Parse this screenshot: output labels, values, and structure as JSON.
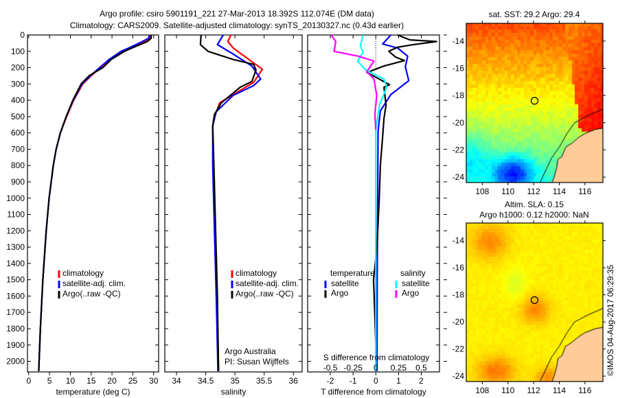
{
  "title": {
    "line1": "Argo profile: csiro 5901191_221 27-Mar-2013 18.392S 112.074E (DM data)",
    "line2": "Climatology: CARS2009. Satellite-adjusted climatology: synTS_20130327.nc (0.43d earlier)"
  },
  "timestamp": "©IMOS 04-Aug-2017 06:29:35",
  "colors": {
    "climatology": "#ff0000",
    "satellite": "#0000ff",
    "argo": "#000000",
    "sat_salinity": "#00ffff",
    "argo_salinity": "#ff00ff",
    "land": "#ffcc99"
  },
  "chart_data": [
    {
      "id": "temperature",
      "type": "line",
      "xlabel": "temperature (deg C)",
      "ylabel": "depth",
      "xlim": [
        -0.3,
        31.2
      ],
      "ylim": [
        2065,
        0
      ],
      "xticks": [
        0,
        5,
        10,
        15,
        20,
        25,
        30
      ],
      "yticks": [
        0,
        100,
        200,
        300,
        400,
        500,
        600,
        700,
        800,
        900,
        1000,
        1100,
        1200,
        1300,
        1400,
        1500,
        1600,
        1700,
        1800,
        1900,
        2000
      ],
      "legend": [
        "climatology",
        "satellite-adj. clim.",
        "Argo(..raw -QC)"
      ],
      "legend_placement": "lower-center",
      "series": [
        {
          "name": "climatology",
          "color": "#ff0000",
          "depth": [
            0,
            20,
            50,
            80,
            100,
            150,
            200,
            250,
            300,
            400,
            500,
            600,
            700,
            800,
            1000,
            1200,
            1500,
            1800,
            2060
          ],
          "values": [
            29.3,
            29.0,
            27.0,
            24.5,
            22.5,
            19.5,
            17.2,
            15.0,
            13.0,
            10.8,
            9.1,
            7.6,
            6.6,
            5.9,
            4.9,
            4.2,
            3.4,
            2.8,
            2.4
          ]
        },
        {
          "name": "satellite-adj. clim.",
          "color": "#0000ff",
          "depth": [
            0,
            20,
            50,
            80,
            100,
            150,
            200,
            250,
            300,
            400,
            500,
            600,
            700,
            800,
            1000,
            1200,
            1500,
            1800,
            2060
          ],
          "values": [
            29.0,
            28.8,
            26.5,
            24.0,
            22.2,
            19.3,
            17.0,
            14.8,
            12.8,
            10.7,
            9.0,
            7.6,
            6.6,
            5.9,
            4.9,
            4.2,
            3.4,
            2.8,
            2.4
          ]
        },
        {
          "name": "Argo(..raw -QC)",
          "color": "#000000",
          "depth": [
            0,
            20,
            40,
            80,
            100,
            150,
            200,
            250,
            300,
            400,
            500,
            600,
            700,
            800,
            1000,
            1200,
            1500,
            1800,
            2060
          ],
          "values": [
            29.4,
            29.4,
            28.5,
            24.8,
            23.0,
            19.8,
            17.8,
            14.5,
            12.6,
            10.6,
            9.0,
            7.6,
            6.6,
            5.9,
            4.9,
            4.2,
            3.4,
            2.8,
            2.4
          ]
        }
      ]
    },
    {
      "id": "salinity",
      "type": "line",
      "xlabel": "salinity",
      "xlim": [
        33.8,
        36.15
      ],
      "ylim": [
        2065,
        0
      ],
      "xticks": [
        34,
        34.5,
        35,
        35.5,
        36
      ],
      "legend": [
        "climatology",
        "satellite-adj. clim.",
        "Argo(..raw -QC)"
      ],
      "legend_placement": "lower-center",
      "annotation": [
        "Argo Australia",
        "PI: Susan Wijffels"
      ],
      "series": [
        {
          "name": "climatology",
          "color": "#ff0000",
          "depth": [
            0,
            40,
            80,
            140,
            210,
            290,
            340,
            415,
            510,
            560,
            800,
            1200,
            1600,
            2060
          ],
          "values": [
            34.93,
            34.88,
            34.97,
            35.2,
            35.47,
            35.32,
            35.09,
            34.74,
            34.64,
            34.62,
            34.63,
            34.66,
            34.69,
            34.72
          ]
        },
        {
          "name": "satellite-adj. clim.",
          "color": "#0000ff",
          "depth": [
            0,
            59,
            110,
            190,
            270,
            310,
            370,
            470,
            557,
            800,
            1200,
            1600,
            2060
          ],
          "values": [
            34.8,
            34.7,
            34.94,
            35.29,
            35.44,
            35.32,
            34.97,
            34.68,
            34.62,
            34.62,
            34.65,
            34.68,
            34.71
          ]
        },
        {
          "name": "Argo(..raw -QC)",
          "color": "#000000",
          "depth": [
            0,
            59,
            100,
            150,
            180,
            215,
            285,
            320,
            415,
            487,
            557,
            795,
            1200,
            1600,
            2060
          ],
          "values": [
            34.42,
            34.41,
            34.54,
            34.97,
            35.32,
            35.36,
            35.29,
            35.09,
            34.77,
            34.65,
            34.62,
            34.64,
            34.67,
            34.7,
            34.72
          ]
        }
      ]
    },
    {
      "id": "difference",
      "type": "line",
      "xlabel": "T difference from climatology",
      "x2label": "S difference from climatology",
      "xlim": [
        -3.0,
        2.8
      ],
      "x2lim": [
        -0.75,
        0.7
      ],
      "ylim": [
        2065,
        0
      ],
      "xticks": [
        -2,
        -1,
        0,
        1,
        2
      ],
      "x2ticks": [
        "-0.5",
        "-0.25",
        "0",
        "0.25",
        "0.5"
      ],
      "x2tick_values": [
        -0.5,
        -0.25,
        0,
        0.25,
        0.5
      ],
      "legend_titles": [
        "temperature",
        "salinity"
      ],
      "legend": [
        "satellite",
        "Argo",
        "satellite",
        "Argo"
      ],
      "series": [
        {
          "name": "T satellite",
          "axis": "T",
          "color": "#0000ff",
          "depth": [
            0,
            55,
            80,
            130,
            195,
            280,
            365,
            465,
            590,
            1000,
            1500,
            2060
          ],
          "values": [
            0.66,
            0.3,
            0.96,
            1.4,
            1.3,
            1.45,
            0.66,
            0.2,
            0.1,
            0.08,
            0.06,
            0.05
          ]
        },
        {
          "name": "T Argo",
          "axis": "T",
          "color": "#000000",
          "depth": [
            0,
            30,
            40,
            60,
            75,
            100,
            135,
            157,
            190,
            230,
            270,
            305,
            320,
            430,
            510,
            625,
            800,
            1000,
            1300,
            1500,
            1700,
            1900,
            2060
          ],
          "values": [
            0.96,
            1.5,
            2.67,
            1.6,
            0.96,
            0.57,
            0.87,
            1.26,
            0.36,
            -0.39,
            0.15,
            0.6,
            0.36,
            0.45,
            0.36,
            0.3,
            0.2,
            0.15,
            0.05,
            -0.1,
            -0.05,
            0.0,
            0.0
          ]
        },
        {
          "name": "S satellite",
          "axis": "S",
          "color": "#00ffff",
          "depth": [
            0,
            65,
            105,
            160,
            215,
            270,
            320,
            430,
            580,
            1000,
            1500,
            2060
          ],
          "values": [
            -0.14,
            -0.17,
            -0.14,
            -0.2,
            -0.11,
            0.09,
            0.12,
            0.04,
            0.0,
            0.0,
            0.0,
            0.0
          ]
        },
        {
          "name": "S Argo",
          "axis": "S",
          "color": "#ff00ff",
          "depth": [
            0,
            40,
            100,
            130,
            160,
            225,
            270,
            370,
            485,
            580
          ],
          "values": [
            -0.49,
            -0.44,
            -0.46,
            -0.19,
            -0.02,
            -0.1,
            -0.02,
            0.01,
            -0.01,
            0.0
          ]
        }
      ]
    },
    {
      "id": "sst-map",
      "type": "heatmap",
      "title": "sat. SST: 29.2 Argo: 29.4",
      "xlim": [
        106.75,
        117.4
      ],
      "ylim": [
        -24.4,
        -12.7
      ],
      "xticks": [
        108,
        110,
        112,
        114,
        116
      ],
      "yticks": [
        -14,
        -16,
        -18,
        -20,
        -22,
        -24
      ],
      "argo_position": {
        "lon": 112.074,
        "lat": -18.392
      }
    },
    {
      "id": "sla-map",
      "type": "heatmap",
      "title": "Altim. SLA: 0.15",
      "subtitle": "Argo h1000: 0.12 h2000: NaN",
      "xlim": [
        106.75,
        117.4
      ],
      "ylim": [
        -24.4,
        -12.7
      ],
      "xticks": [
        108,
        110,
        112,
        114,
        116
      ],
      "yticks": [
        -14,
        -16,
        -18,
        -20,
        -22,
        -24
      ],
      "argo_position": {
        "lon": 112.074,
        "lat": -18.392
      }
    }
  ]
}
